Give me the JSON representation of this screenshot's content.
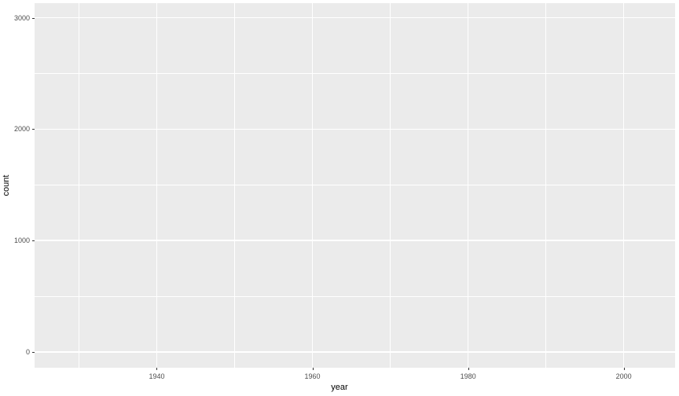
{
  "chart_data": {
    "type": "scatter",
    "title": "",
    "xlabel": "year",
    "ylabel": "count",
    "x_ticks": [
      1940,
      1960,
      1980,
      2000
    ],
    "x_tick_labels": [
      "1940",
      "1960",
      "1980",
      "2000"
    ],
    "x_minor_ticks": [
      1930,
      1950,
      1970,
      1990
    ],
    "y_ticks": [
      0,
      1000,
      2000,
      3000
    ],
    "y_tick_labels": [
      "0",
      "1000",
      "2000",
      "3000"
    ],
    "y_minor_ticks": [
      500,
      1500,
      2500
    ],
    "xlim": [
      1924.3,
      2006.6
    ],
    "ylim": [
      -141,
      3131
    ],
    "series": [],
    "legend_position": "none",
    "grid": "major and minor, white on grey panel",
    "colors": {
      "figure_bg": "#FFFFFF",
      "panel_bg": "#EBEBEB",
      "grid": "#FFFFFF",
      "tick_mark": "#333333",
      "tick_label": "#4D4D4D",
      "axis_title": "#000000"
    }
  }
}
